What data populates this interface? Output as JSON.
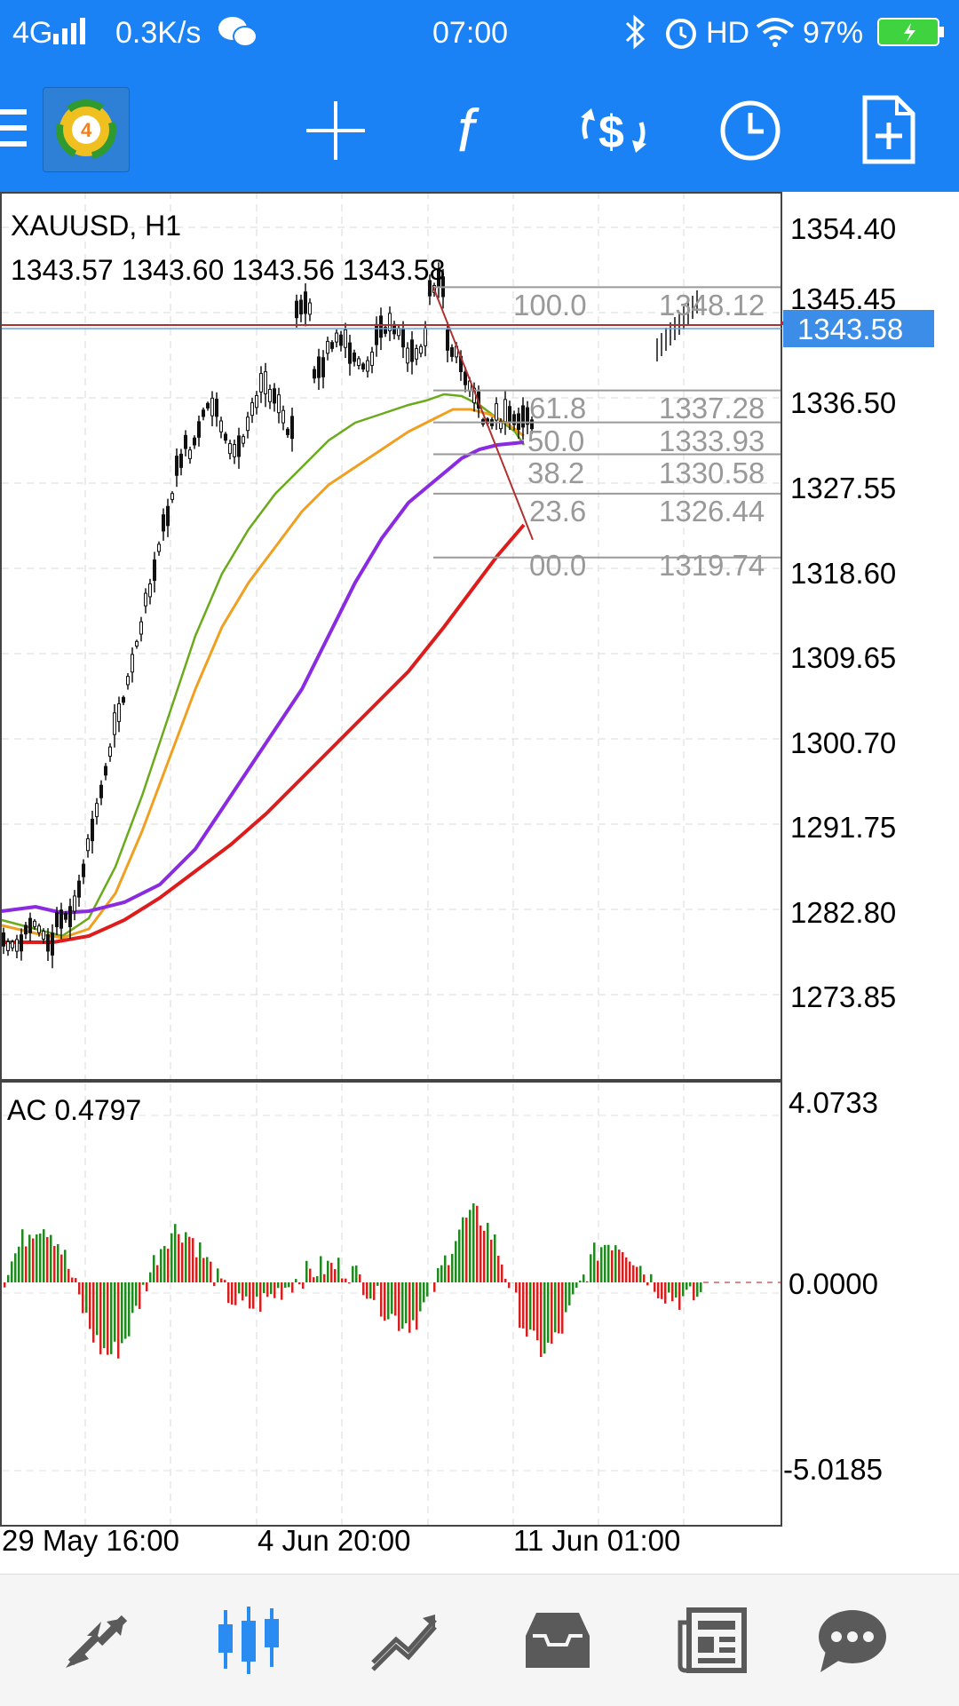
{
  "status_bar": {
    "network": "4G",
    "speed": "0.3K/s",
    "time": "07:00",
    "hd": "HD",
    "battery": "97%"
  },
  "toolbar": {
    "icons": [
      "menu-icon",
      "mt4-logo",
      "crosshair-icon",
      "indicator-f-icon",
      "trade-dollar-icon",
      "timeframe-clock-icon",
      "new-order-icon"
    ]
  },
  "chart": {
    "symbol_label": "XAUUSD, H1",
    "ohlc_label": "1343.57 1343.60 1343.56 1343.58",
    "price_axis": [
      "1354.40",
      "1345.45",
      "1336.50",
      "1327.55",
      "1318.60",
      "1309.65",
      "1300.70",
      "1291.75",
      "1282.80",
      "1273.85"
    ],
    "current_price": "1343.58",
    "fibonacci": [
      {
        "level": "100.0",
        "price": "1348.12"
      },
      {
        "level": "61.8",
        "price": "1337.28"
      },
      {
        "level": "50.0",
        "price": "1333.93"
      },
      {
        "level": "38.2",
        "price": "1330.58"
      },
      {
        "level": "23.6",
        "price": "1326.44"
      },
      {
        "level": "00.0",
        "price": "1319.74"
      }
    ],
    "indicator_label": "AC 0.4797",
    "indicator_axis": [
      "4.0733",
      "0.0000",
      "-5.0185"
    ],
    "time_axis": [
      "29 May 16:00",
      "4 Jun 20:00",
      "11 Jun 01:00"
    ],
    "colors": {
      "ma_green": "#6aaa1c",
      "ma_orange": "#f0a020",
      "ma_purple": "#8a2be2",
      "ma_red": "#dd1c1c",
      "ac_up": "#1f8a1f",
      "ac_down": "#d42020",
      "price_tag": "#3b8de8"
    }
  },
  "bottom_nav": {
    "items": [
      "quotes-icon",
      "chart-icon",
      "trade-icon",
      "history-icon",
      "news-icon",
      "messages-icon"
    ],
    "active": "chart-icon",
    "active_color": "#2a8cf0",
    "inactive_color": "#5a5a5a"
  }
}
